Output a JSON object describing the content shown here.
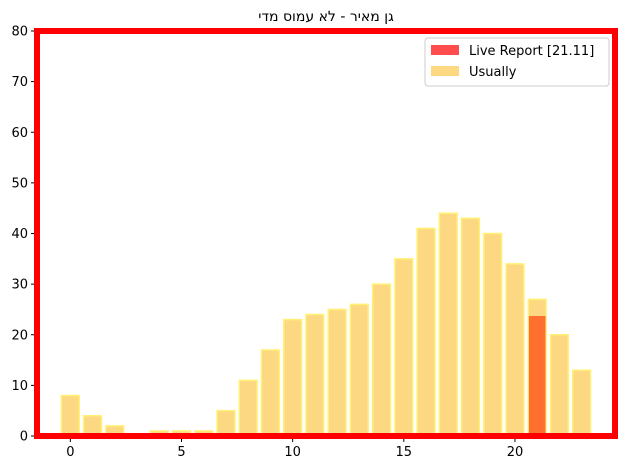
{
  "chart_data": {
    "type": "bar",
    "title": "גן מאיר - לא עמוס מדי",
    "xlabel": "",
    "ylabel": "",
    "xlim": [
      -1.5,
      24.5
    ],
    "ylim": [
      0,
      80
    ],
    "x_ticks": [
      0,
      5,
      10,
      15,
      20
    ],
    "y_ticks": [
      0,
      10,
      20,
      30,
      40,
      50,
      60,
      70,
      80
    ],
    "grid": false,
    "legend_position": "top-right",
    "frame_color": "#ff0000",
    "series": [
      {
        "name": "Usually",
        "color": "#fdd882",
        "edge_color": "#fff176",
        "x": [
          0,
          1,
          2,
          3,
          4,
          5,
          6,
          7,
          8,
          9,
          10,
          11,
          12,
          13,
          14,
          15,
          16,
          17,
          18,
          19,
          20,
          21,
          22,
          23
        ],
        "values": [
          8,
          4,
          2,
          0,
          1,
          1,
          1,
          5,
          11,
          17,
          23,
          24,
          25,
          26,
          30,
          35,
          41,
          44,
          43,
          40,
          34,
          27,
          20,
          13
        ]
      },
      {
        "name": "Live Report [21.11]",
        "color": "#ff4d4d",
        "overlap_color": "#ff7030",
        "x": [
          21
        ],
        "values": [
          23.7
        ]
      }
    ],
    "legend": [
      {
        "label": "Live Report [21.11]",
        "color": "#ff4d4d"
      },
      {
        "label": "Usually",
        "color": "#fdd882"
      }
    ]
  }
}
